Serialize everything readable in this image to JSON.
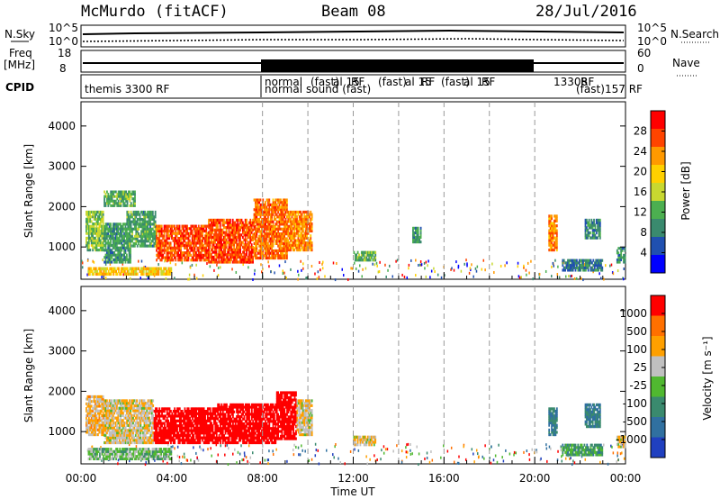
{
  "header": {
    "station": "McMurdo (fitACF)",
    "beam": "Beam 08",
    "date": "28/Jul/2016"
  },
  "top_panel": {
    "left_labels": {
      "nsky": "N.Sky",
      "freq_line1": "Freq",
      "freq_line2": "[MHz]",
      "cpid": "CPID"
    },
    "right_labels": {
      "nsearch": "N.Search",
      "nave": "Nave"
    },
    "nsky_ticks": [
      "10^5",
      "10^0"
    ],
    "nsearch_ticks": [
      "10^5",
      "10^0"
    ],
    "freq_ticks": [
      "18",
      "8"
    ],
    "nave_ticks": [
      "60",
      "0"
    ],
    "cpid_texts": [
      "themis 3300 RF",
      "normal",
      "normal",
      "sound (fast)",
      "(fast)",
      "al 15",
      "RF",
      "(fast)",
      "al 15",
      "RF",
      "(fast)",
      "al 15",
      "RF",
      "13308",
      "RF",
      "(fast)",
      "157 RF"
    ]
  },
  "x_axis": {
    "label": "Time UT",
    "ticks": [
      "00:00",
      "04:00",
      "08:00",
      "12:00",
      "16:00",
      "20:00",
      "00:00"
    ]
  },
  "panels": {
    "power": {
      "ylabel": "Slant Range [km]",
      "cbar_label": "Power [dB]",
      "cbar_ticks": [
        "28",
        "24",
        "20",
        "16",
        "12",
        "8",
        "4"
      ]
    },
    "velocity": {
      "ylabel": "Slant Range [km]",
      "cbar_label": "Velocity [m s⁻¹]",
      "cbar_ticks": [
        "1000",
        "500",
        "100",
        "25",
        "-25",
        "-100",
        "-500",
        "-1000"
      ]
    }
  },
  "chart_data": [
    {
      "type": "heatmap",
      "title": "Power",
      "x_unit": "hours UT",
      "xlim": [
        0,
        24
      ],
      "ylabel": "Slant Range [km]",
      "ylim": [
        200,
        4600
      ],
      "yticks": [
        1000,
        2000,
        3000,
        4000
      ],
      "colorbar": {
        "label": "Power [dB]",
        "range": [
          0,
          32
        ],
        "ticks": [
          4,
          8,
          12,
          16,
          20,
          24,
          28
        ],
        "colors": [
          "#0000ff",
          "#2050b0",
          "#3a8a6e",
          "#4caf50",
          "#c8d830",
          "#ffd000",
          "#ff9900",
          "#ff4400",
          "#ff0000"
        ]
      },
      "regions": [
        {
          "t0": 0.2,
          "t1": 1.0,
          "r0": 900,
          "r1": 1900,
          "value": 14
        },
        {
          "t0": 1.0,
          "t1": 2.2,
          "r0": 600,
          "r1": 1600,
          "value": 10
        },
        {
          "t0": 2.0,
          "t1": 3.3,
          "r0": 1000,
          "r1": 1900,
          "value": 11
        },
        {
          "t0": 3.3,
          "t1": 5.6,
          "r0": 650,
          "r1": 1550,
          "value": 27
        },
        {
          "t0": 5.6,
          "t1": 7.6,
          "r0": 600,
          "r1": 1700,
          "value": 27
        },
        {
          "t0": 7.6,
          "t1": 9.1,
          "r0": 700,
          "r1": 2200,
          "value": 25
        },
        {
          "t0": 9.1,
          "t1": 10.2,
          "r0": 900,
          "r1": 1900,
          "value": 24
        },
        {
          "t0": 1.0,
          "t1": 2.4,
          "r0": 2000,
          "r1": 2400,
          "value": 12
        },
        {
          "t0": 0.3,
          "t1": 4.0,
          "r0": 300,
          "r1": 500,
          "value": 20
        },
        {
          "t0": 12.0,
          "t1": 13.0,
          "r0": 650,
          "r1": 900,
          "value": 12
        },
        {
          "t0": 14.6,
          "t1": 15.0,
          "r0": 1100,
          "r1": 1500,
          "value": 10
        },
        {
          "t0": 20.6,
          "t1": 21.0,
          "r0": 900,
          "r1": 1800,
          "value": 24
        },
        {
          "t0": 22.2,
          "t1": 22.9,
          "r0": 1200,
          "r1": 1700,
          "value": 8
        },
        {
          "t0": 21.2,
          "t1": 23.0,
          "r0": 400,
          "r1": 700,
          "value": 8
        },
        {
          "t0": 23.6,
          "t1": 24.0,
          "r0": 600,
          "r1": 1000,
          "value": 10
        }
      ]
    },
    {
      "type": "heatmap",
      "title": "Velocity",
      "x_unit": "hours UT",
      "xlim": [
        0,
        24
      ],
      "ylabel": "Slant Range [km]",
      "ylim": [
        200,
        4600
      ],
      "yticks": [
        1000,
        2000,
        3000,
        4000
      ],
      "colorbar": {
        "label": "Velocity [m s⁻¹]",
        "range": [
          -1000,
          1000
        ],
        "ticks": [
          1000,
          500,
          100,
          25,
          -25,
          -100,
          -500,
          -1000
        ],
        "colors": [
          "#2040c0",
          "#3070a0",
          "#3a8a6e",
          "#50b830",
          "#c0c0c0",
          "#ffa000",
          "#ff7000",
          "#ff0000"
        ]
      },
      "regions": [
        {
          "t0": 0.2,
          "t1": 1.0,
          "r0": 900,
          "r1": 1900,
          "value": 300
        },
        {
          "t0": 1.0,
          "t1": 3.2,
          "r0": 700,
          "r1": 1800,
          "value": 200
        },
        {
          "t0": 3.2,
          "t1": 6.0,
          "r0": 700,
          "r1": 1600,
          "value": 1000
        },
        {
          "t0": 6.0,
          "t1": 8.6,
          "r0": 700,
          "r1": 1700,
          "value": 1000
        },
        {
          "t0": 8.6,
          "t1": 9.5,
          "r0": 800,
          "r1": 2000,
          "value": 1000
        },
        {
          "t0": 9.5,
          "t1": 10.2,
          "r0": 900,
          "r1": 1800,
          "value": 200
        },
        {
          "t0": 0.3,
          "t1": 4.0,
          "r0": 300,
          "r1": 600,
          "value": -100
        },
        {
          "t0": 12.0,
          "t1": 13.0,
          "r0": 650,
          "r1": 900,
          "value": 200
        },
        {
          "t0": 20.6,
          "t1": 21.0,
          "r0": 900,
          "r1": 1600,
          "value": -500
        },
        {
          "t0": 22.2,
          "t1": 22.9,
          "r0": 1100,
          "r1": 1700,
          "value": -500
        },
        {
          "t0": 21.2,
          "t1": 23.0,
          "r0": 400,
          "r1": 700,
          "value": -300
        },
        {
          "t0": 23.6,
          "t1": 24.0,
          "r0": 600,
          "r1": 900,
          "value": 200
        }
      ]
    }
  ]
}
